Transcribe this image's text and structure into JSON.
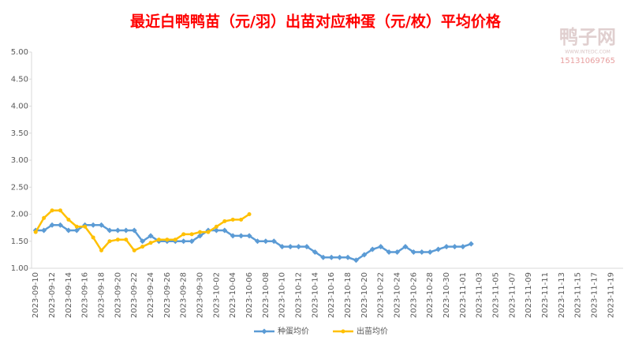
{
  "chart_data": {
    "type": "line",
    "title": "最近白鸭鸭苗（元/羽）出苗对应种蛋（元/枚）平均价格",
    "watermark": {
      "name": "鸭子网",
      "site": "WWW.INTEDC.COM",
      "phone": "15131069765"
    },
    "categories": [
      "2023-09-10",
      null,
      "2023-09-12",
      null,
      "2023-09-14",
      null,
      "2023-09-16",
      null,
      "2023-09-18",
      null,
      "2023-09-20",
      null,
      "2023-09-22",
      null,
      "2023-09-24",
      null,
      "2023-09-26",
      null,
      "2023-09-28",
      null,
      "2023-09-30",
      null,
      "2023-10-02",
      null,
      "2023-10-04",
      null,
      "2023-10-06",
      null,
      "2023-10-08",
      null,
      "2023-10-10",
      null,
      "2023-10-12",
      null,
      "2023-10-14",
      null,
      "2023-10-16",
      null,
      "2023-10-18",
      null,
      "2023-10-20",
      null,
      "2023-10-22",
      null,
      "2023-10-24",
      null,
      "2023-10-26",
      null,
      "2023-10-28",
      null,
      "2023-10-30",
      null,
      "2023-11-01",
      null,
      "2023-11-03",
      null,
      "2023-11-05",
      null,
      "2023-11-07",
      null,
      "2023-11-09",
      null,
      "2023-11-11",
      null,
      "2023-11-13",
      null,
      "2023-11-15",
      null,
      "2023-11-17",
      null,
      "2023-11-19",
      null
    ],
    "series": [
      {
        "name": "种蛋均价",
        "color": "#5b9bd5",
        "marker": "diamond",
        "values": [
          1.7,
          1.7,
          1.8,
          1.8,
          1.7,
          1.7,
          1.8,
          1.8,
          1.8,
          1.7,
          1.7,
          1.7,
          1.7,
          1.5,
          1.6,
          1.5,
          1.5,
          1.5,
          1.5,
          1.5,
          1.6,
          1.7,
          1.7,
          1.7,
          1.6,
          1.6,
          1.6,
          1.5,
          1.5,
          1.5,
          1.4,
          1.4,
          1.4,
          1.4,
          1.3,
          1.2,
          1.2,
          1.2,
          1.2,
          1.15,
          1.25,
          1.35,
          1.4,
          1.3,
          1.3,
          1.4,
          1.3,
          1.3,
          1.3,
          1.35,
          1.4,
          1.4,
          1.4,
          1.45,
          null,
          null,
          null,
          null,
          null,
          null,
          null,
          null,
          null,
          null,
          null,
          null,
          null,
          null,
          null,
          null,
          null,
          null
        ]
      },
      {
        "name": "出苗均价",
        "color": "#ffc000",
        "marker": "circle",
        "values": [
          1.67,
          1.93,
          2.07,
          2.07,
          1.9,
          1.77,
          1.77,
          1.57,
          1.33,
          1.5,
          1.53,
          1.53,
          1.33,
          1.4,
          1.47,
          1.53,
          1.53,
          1.53,
          1.63,
          1.63,
          1.67,
          1.67,
          1.77,
          1.87,
          1.9,
          1.9,
          2.0,
          null,
          null,
          null,
          null,
          null,
          null,
          null,
          null,
          null,
          null,
          null,
          null,
          null,
          null,
          null,
          null,
          null,
          null,
          null,
          null,
          null,
          null,
          null,
          null,
          null,
          null,
          null,
          null,
          null,
          null,
          null,
          null,
          null,
          null,
          null,
          null,
          null,
          null,
          null,
          null,
          null,
          null,
          null,
          null,
          null
        ]
      }
    ],
    "ylim": [
      1,
      5
    ],
    "yticks": [
      {
        "value": 1,
        "label": "1.00"
      },
      {
        "value": 1.5,
        "label": "1.50"
      },
      {
        "value": 2,
        "label": "2.00"
      },
      {
        "value": 2.5,
        "label": "2.50"
      },
      {
        "value": 3,
        "label": "3.00"
      },
      {
        "value": 3.5,
        "label": "3.50"
      },
      {
        "value": 4,
        "label": "4.00"
      },
      {
        "value": 4.5,
        "label": "4.50"
      },
      {
        "value": 5,
        "label": "5.00"
      }
    ],
    "grid": false,
    "legend": "bottom"
  }
}
